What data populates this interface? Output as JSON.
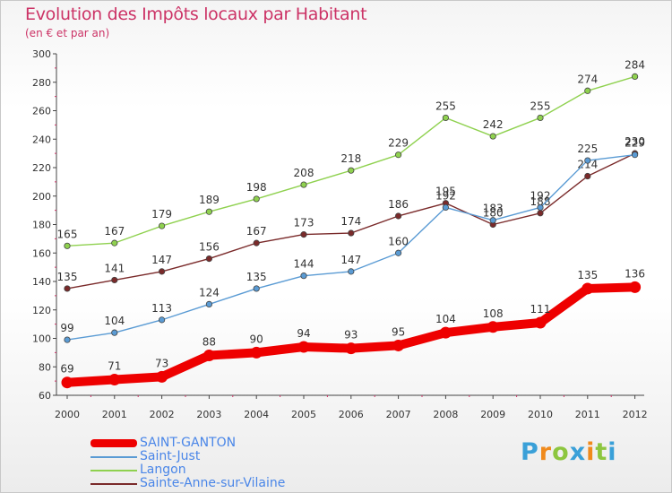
{
  "title": "Evolution des Impôts locaux par Habitant",
  "subtitle": "(en € et par an)",
  "logo": {
    "text": "Proxiti",
    "letters": [
      "P",
      "r",
      "o",
      "x",
      "i",
      "t",
      "i"
    ]
  },
  "chart_data": {
    "type": "line",
    "title": "Evolution des Impôts locaux par Habitant",
    "subtitle": "(en € et par an)",
    "xlabel": "",
    "ylabel": "",
    "ylim": [
      60,
      300
    ],
    "yticks": [
      60,
      80,
      100,
      120,
      140,
      160,
      180,
      200,
      220,
      240,
      260,
      280,
      300
    ],
    "grid": false,
    "legend_position": "bottom-left",
    "x": [
      "2000",
      "2001",
      "2002",
      "2003",
      "2004",
      "2005",
      "2006",
      "2007",
      "2008",
      "2009",
      "2010",
      "2011",
      "2012"
    ],
    "series": [
      {
        "name": "Langon",
        "color": "#8fd14f",
        "thick": false,
        "values": [
          165,
          167,
          179,
          189,
          198,
          208,
          218,
          229,
          255,
          242,
          255,
          274,
          284
        ]
      },
      {
        "name": "Sainte-Anne-sur-Vilaine",
        "color": "#7a2a2a",
        "thick": false,
        "values": [
          135,
          141,
          147,
          156,
          167,
          173,
          174,
          186,
          195,
          180,
          188,
          214,
          230
        ]
      },
      {
        "name": "Saint-Just",
        "color": "#5a9bd4",
        "thick": false,
        "values": [
          99,
          104,
          113,
          124,
          135,
          144,
          147,
          160,
          192,
          183,
          192,
          225,
          229
        ]
      },
      {
        "name": "SAINT-GANTON",
        "color": "#ee0000",
        "thick": true,
        "values": [
          69,
          71,
          73,
          88,
          90,
          94,
          93,
          95,
          104,
          108,
          111,
          135,
          136
        ]
      }
    ],
    "legend": [
      "SAINT-GANTON",
      "Saint-Just",
      "Langon",
      "Sainte-Anne-sur-Vilaine"
    ]
  }
}
